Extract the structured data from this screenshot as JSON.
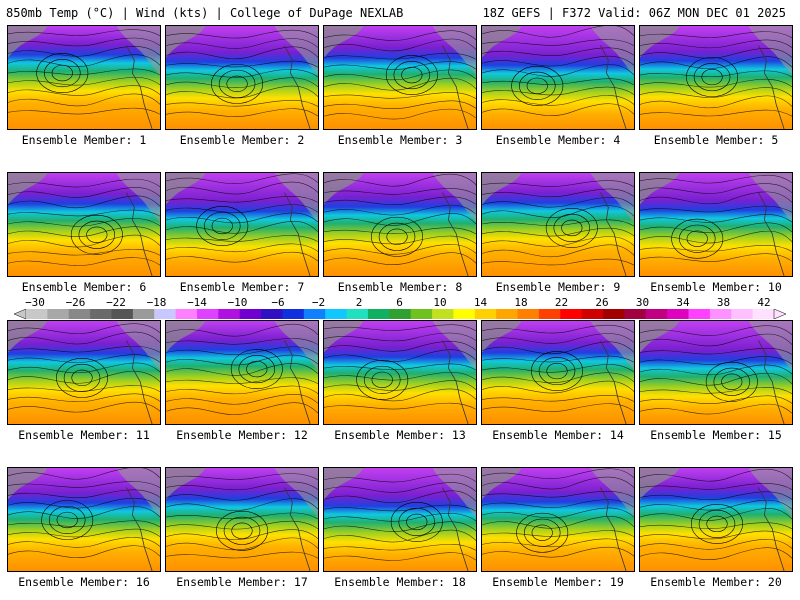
{
  "header": {
    "left": "850mb Temp (°C) | Wind (kts) | College of DuPage NEXLAB",
    "right": "18Z GEFS | F372 Valid: 06Z MON DEC 01 2025"
  },
  "panels": [
    {
      "label": "Ensemble Member: 1"
    },
    {
      "label": "Ensemble Member: 2"
    },
    {
      "label": "Ensemble Member: 3"
    },
    {
      "label": "Ensemble Member: 4"
    },
    {
      "label": "Ensemble Member: 5"
    },
    {
      "label": "Ensemble Member: 6"
    },
    {
      "label": "Ensemble Member: 7"
    },
    {
      "label": "Ensemble Member: 8"
    },
    {
      "label": "Ensemble Member: 9"
    },
    {
      "label": "Ensemble Member: 10"
    },
    {
      "label": "Ensemble Member: 11"
    },
    {
      "label": "Ensemble Member: 12"
    },
    {
      "label": "Ensemble Member: 13"
    },
    {
      "label": "Ensemble Member: 14"
    },
    {
      "label": "Ensemble Member: 15"
    },
    {
      "label": "Ensemble Member: 16"
    },
    {
      "label": "Ensemble Member: 17"
    },
    {
      "label": "Ensemble Member: 18"
    },
    {
      "label": "Ensemble Member: 19"
    },
    {
      "label": "Ensemble Member: 20"
    }
  ],
  "colorbar": {
    "labels": [
      "−30",
      "−26",
      "−22",
      "−18",
      "−14",
      "−10",
      "−6",
      "−2",
      "2",
      "6",
      "10",
      "14",
      "18",
      "22",
      "26",
      "30",
      "34",
      "38",
      "42"
    ],
    "colors": [
      "#c8c8c8",
      "#a8a8a8",
      "#888888",
      "#6a6a6a",
      "#555555",
      "#9a9a9a",
      "#c8c8ff",
      "#ff80ff",
      "#e040ff",
      "#b010e0",
      "#7000d0",
      "#3010c0",
      "#1030e0",
      "#1080ff",
      "#10c8ff",
      "#20e0c0",
      "#10b060",
      "#30a030",
      "#70c020",
      "#c0e020",
      "#ffff00",
      "#ffd000",
      "#ffa500",
      "#ff8000",
      "#ff4000",
      "#ff0000",
      "#d00000",
      "#a00000",
      "#a00040",
      "#c00080",
      "#e000c0",
      "#ff40ff",
      "#ff90ff",
      "#ffc0ff",
      "#ffe0ff"
    ]
  },
  "colors": {
    "ocean_warm": "#ffa500",
    "cold_high_lat": "#b030e0",
    "land_gray": "#8c8c8c"
  }
}
